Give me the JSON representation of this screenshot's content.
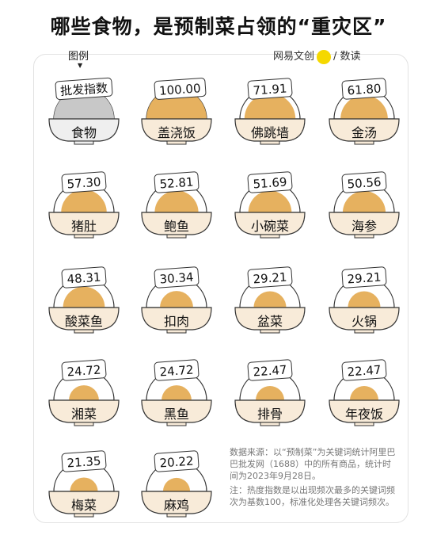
{
  "title": "哪些食物，是预制菜占领的“重灾区”",
  "legend": {
    "label": "图例",
    "badge": "批发指数",
    "name": "食物"
  },
  "brand": {
    "left": "网易文创",
    "right": "数读"
  },
  "colors": {
    "fill": "#e6b15f",
    "bowl_bg": "#f8ebd9",
    "legend_fill": "#c8c8c8",
    "legend_bg": "#efefef",
    "line": "#333333"
  },
  "chart_data": {
    "type": "bar",
    "categories": [
      "盖浇饭",
      "佛跳墙",
      "金汤",
      "猪肚",
      "鲍鱼",
      "小碗菜",
      "海参",
      "酸菜鱼",
      "扣肉",
      "盆菜",
      "火锅",
      "湘菜",
      "黑鱼",
      "排骨",
      "年夜饭",
      "梅菜",
      "麻鸡"
    ],
    "values": [
      "100.00",
      "71.91",
      "61.80",
      "57.30",
      "52.81",
      "51.69",
      "50.56",
      "48.31",
      "30.34",
      "29.21",
      "29.21",
      "24.72",
      "24.72",
      "22.47",
      "22.47",
      "21.35",
      "20.22"
    ],
    "ylim": [
      0,
      100
    ]
  },
  "notes": {
    "source": "数据来源：以“预制菜”为关键词统计阿里巴巴批发网（1688）中的所有商品，统计时间为2023年9月28日。",
    "method": "注：热度指数是以出现频次最多的关键词频次为基数100，标准化处理各关键词频次。"
  }
}
